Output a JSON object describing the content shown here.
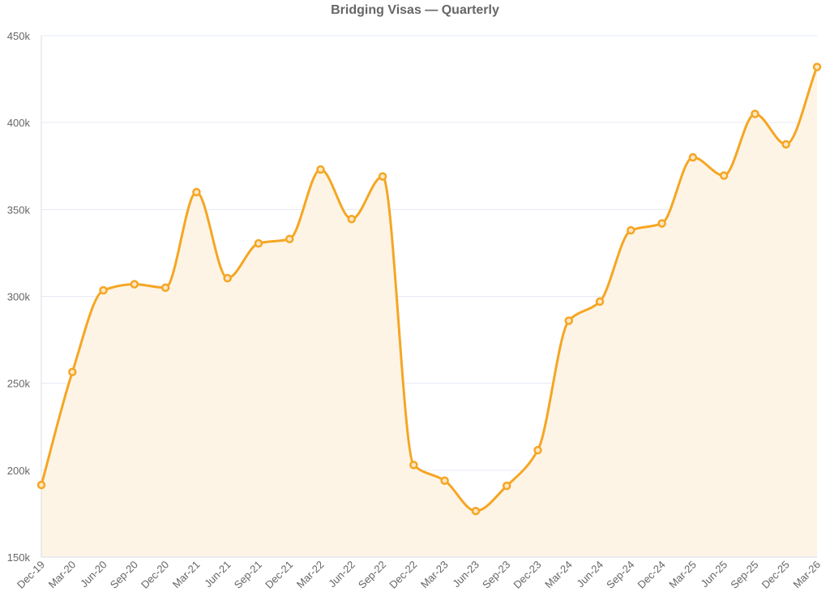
{
  "chart_data": {
    "type": "area",
    "title": "Bridging Visas — Quarterly",
    "xlabel": "",
    "ylabel": "",
    "categories": [
      "Dec-19",
      "Mar-20",
      "Jun-20",
      "Sep-20",
      "Dec-20",
      "Mar-21",
      "Jun-21",
      "Sep-21",
      "Dec-21",
      "Mar-22",
      "Jun-22",
      "Sep-22",
      "Dec-22",
      "Mar-23",
      "Jun-23",
      "Sep-23",
      "Dec-23",
      "Mar-24",
      "Jun-24",
      "Sep-24",
      "Dec-24",
      "Mar-25",
      "Jun-25",
      "Sep-25",
      "Dec-25",
      "Mar-26"
    ],
    "series": [
      {
        "values": [
          191500,
          256500,
          303500,
          307000,
          305000,
          360000,
          310500,
          330500,
          333000,
          373000,
          344500,
          369000,
          203000,
          194000,
          176500,
          191000,
          211500,
          286000,
          297000,
          338000,
          342000,
          380000,
          369500,
          405000,
          387500,
          432000
        ]
      }
    ],
    "ylim": [
      150000,
      450000
    ],
    "yticks": [
      {
        "value": 150000,
        "label": "150k"
      },
      {
        "value": 200000,
        "label": "200k"
      },
      {
        "value": 250000,
        "label": "250k"
      },
      {
        "value": 300000,
        "label": "300k"
      },
      {
        "value": 350000,
        "label": "350k"
      },
      {
        "value": 400000,
        "label": "400k"
      },
      {
        "value": 450000,
        "label": "450k"
      }
    ],
    "grid": true,
    "legend": "none",
    "colors": {
      "line": "#F5A623",
      "fill": "#FDF4E6",
      "marker_fill": "#FCE7C4"
    }
  }
}
